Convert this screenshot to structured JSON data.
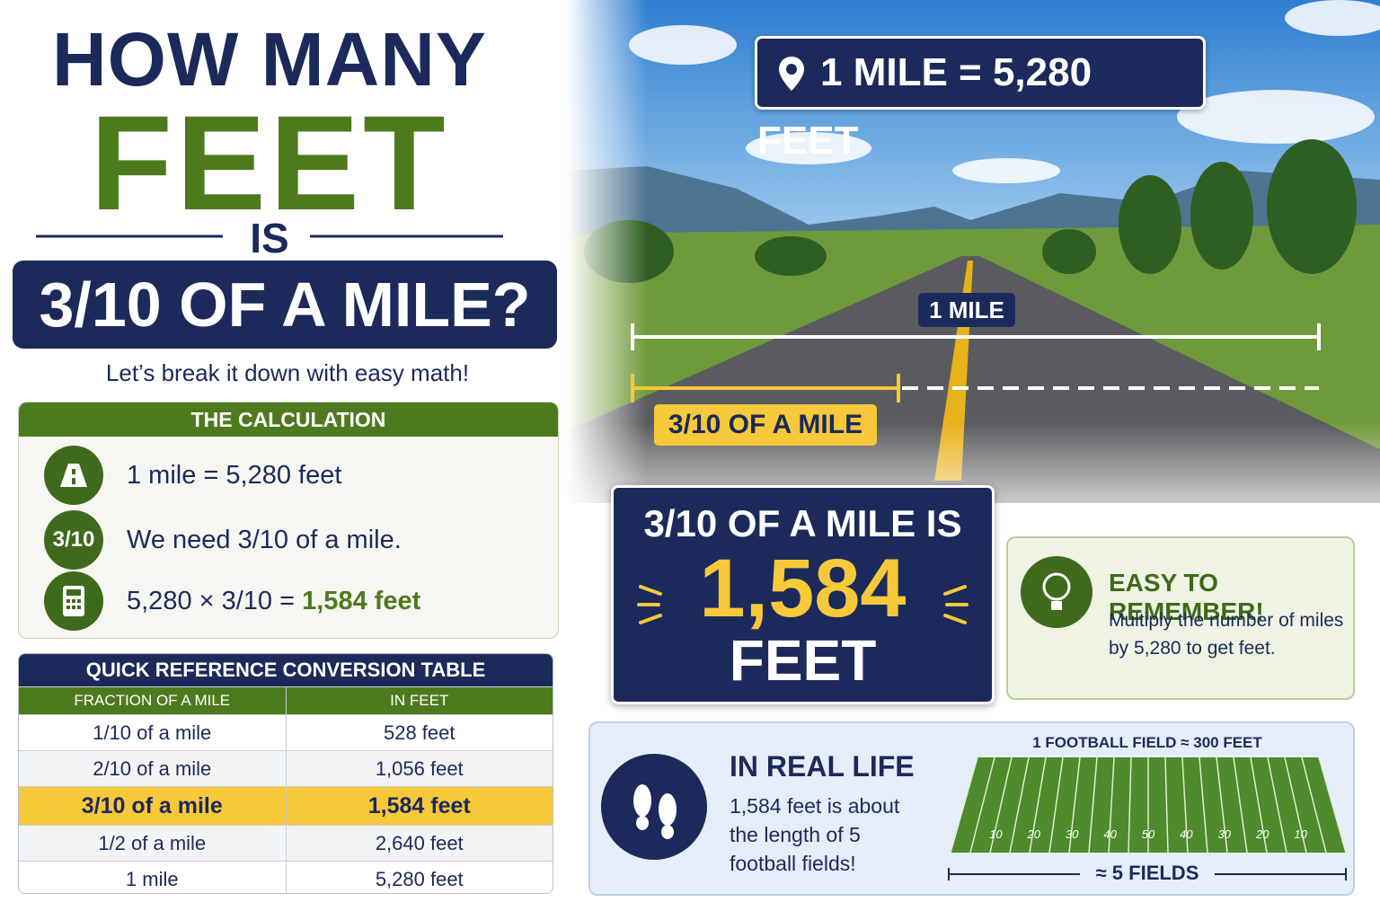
{
  "title": {
    "line1": "HOW MANY",
    "line2": "FEET",
    "line3": "IS",
    "line4": "3/10 OF A MILE?"
  },
  "subtitle": "Let’s break it down with easy math!",
  "calculation": {
    "header": "THE CALCULATION",
    "steps": [
      {
        "text": "1 mile = 5,280 feet"
      },
      {
        "icon_label": "3/10",
        "text": "We need 3/10 of a mile."
      },
      {
        "text": "5,280 × 3/10 = ",
        "highlight": "1,584 feet"
      }
    ]
  },
  "table": {
    "title": "QUICK REFERENCE CONVERSION TABLE",
    "headers": [
      "FRACTION OF A MILE",
      "IN FEET"
    ],
    "rows": [
      [
        "1/10 of a mile",
        "528 feet"
      ],
      [
        "2/10 of a mile",
        "1,056 feet"
      ],
      [
        "3/10 of a mile",
        "1,584 feet"
      ],
      [
        "1/2 of a mile",
        "2,640 feet"
      ],
      [
        "1 mile",
        "5,280 feet"
      ]
    ]
  },
  "banner": "1 MILE = 5,280 FEET",
  "road": {
    "full_label": "1 MILE",
    "part_label": "3/10 OF A MILE"
  },
  "result": {
    "line1": "3/10 OF A MILE IS",
    "number": "1,584",
    "unit": "FEET"
  },
  "tip": {
    "title": "EASY TO REMEMBER!",
    "text": "Multiply the number of miles by 5,280 to get feet."
  },
  "real_life": {
    "title": "IN REAL LIFE",
    "text": "1,584 feet is about the length of 5 football fields!",
    "field_caption": "1 FOOTBALL FIELD ≈ 300 FEET",
    "yard_numbers": [
      "10",
      "20",
      "30",
      "40",
      "50",
      "40",
      "30",
      "20",
      "10"
    ],
    "span_label": "≈ 5 FIELDS"
  }
}
